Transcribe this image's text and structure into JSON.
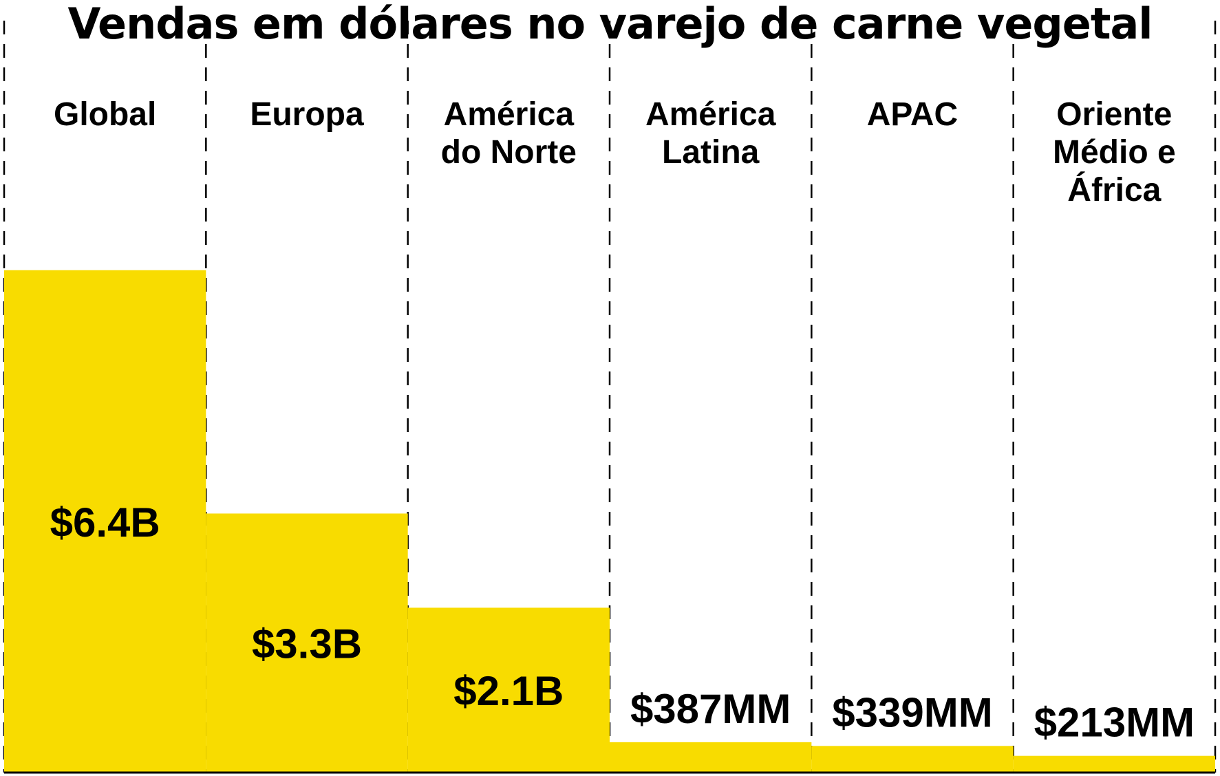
{
  "chart_data": {
    "type": "bar",
    "title": "Vendas em dólares no varejo de carne vegetal",
    "categories": [
      "Global",
      "Europa",
      "América do Norte",
      "América Latina",
      "APAC",
      "Oriente Médio e África"
    ],
    "category_label_lines": [
      [
        "Global"
      ],
      [
        "Europa"
      ],
      [
        "América",
        "do Norte"
      ],
      [
        "América",
        "Latina"
      ],
      [
        "APAC"
      ],
      [
        "Oriente",
        "Médio e",
        "África"
      ]
    ],
    "values": [
      6400,
      3300,
      2100,
      387,
      339,
      213
    ],
    "value_unit": "US$ milhões",
    "data_labels": [
      "$6.4B",
      "$3.3B",
      "$2.1B",
      "$387MM",
      "$339MM",
      "$213MM"
    ],
    "ylim": [
      0,
      7800
    ],
    "grid": "dashed vertical column separators",
    "bar_color": "#F8DC00",
    "text_color": "#000000",
    "baseline_color": "#000000"
  }
}
